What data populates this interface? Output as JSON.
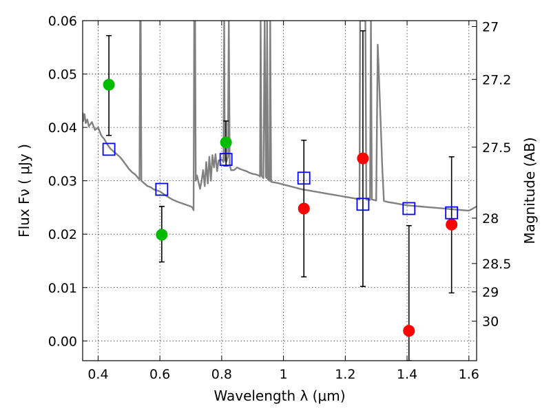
{
  "chart_data": {
    "type": "scatter",
    "title": "",
    "xlabel": "Wavelength  λ (μm)",
    "ylabel": "Flux  Fν  ( μJy )",
    "right_ylabel": "Magnitude (AB)",
    "xlim": [
      0.35,
      1.625
    ],
    "ylim": [
      -0.0037,
      0.06
    ],
    "x_ticks": [
      0.4,
      0.6,
      0.8,
      1.0,
      1.2,
      1.4,
      1.6
    ],
    "x_tick_labels": [
      "0.4",
      "0.6",
      "0.8",
      "1",
      "1.2",
      "1.4",
      "1.6"
    ],
    "y_ticks": [
      0.0,
      0.01,
      0.02,
      0.03,
      0.04,
      0.05,
      0.06
    ],
    "y_tick_labels": [
      "0.00",
      "0.01",
      "0.02",
      "0.03",
      "0.04",
      "0.05",
      "0.06"
    ],
    "right_ticks": [
      {
        "label": "27",
        "flux": 0.0589
      },
      {
        "label": "27.2",
        "flux": 0.049
      },
      {
        "label": "27.5",
        "flux": 0.0363
      },
      {
        "label": "28",
        "flux": 0.023
      },
      {
        "label": "28.5",
        "flux": 0.0145
      },
      {
        "label": "29",
        "flux": 0.0092
      },
      {
        "label": "30",
        "flux": 0.0037
      }
    ],
    "grid": true,
    "colors": {
      "green": "#00bb00",
      "red": "#ff0000",
      "blue": "#0000ff",
      "model": "#808080",
      "errorbar": "#000000"
    },
    "series": [
      {
        "marker": "circle",
        "color": "green",
        "points": [
          {
            "x": 0.435,
            "y": 0.048,
            "lo": 0.0385,
            "hi": 0.0572
          },
          {
            "x": 0.606,
            "y": 0.0199,
            "lo": 0.0148,
            "hi": 0.0252
          },
          {
            "x": 0.814,
            "y": 0.0372,
            "lo": 0.0328,
            "hi": 0.0412
          }
        ]
      },
      {
        "marker": "circle",
        "color": "red",
        "points": [
          {
            "x": 1.066,
            "y": 0.0248,
            "lo": 0.012,
            "hi": 0.0376
          },
          {
            "x": 1.257,
            "y": 0.0342,
            "lo": 0.0102,
            "hi": 0.0581
          },
          {
            "x": 1.406,
            "y": 0.0019,
            "lo": -0.0037,
            "hi": 0.0216
          },
          {
            "x": 1.544,
            "y": 0.0218,
            "lo": 0.009,
            "hi": 0.0345
          }
        ]
      },
      {
        "marker": "open-square",
        "color": "blue",
        "points": [
          {
            "x": 0.435,
            "y": 0.0359
          },
          {
            "x": 0.606,
            "y": 0.0284
          },
          {
            "x": 0.814,
            "y": 0.034
          },
          {
            "x": 1.066,
            "y": 0.0305
          },
          {
            "x": 1.257,
            "y": 0.0256
          },
          {
            "x": 1.406,
            "y": 0.0248
          },
          {
            "x": 1.544,
            "y": 0.024
          }
        ]
      }
    ],
    "model_spectrum": {
      "color": "model",
      "points": [
        [
          0.35,
          0.0428
        ],
        [
          0.352,
          0.0412
        ],
        [
          0.356,
          0.0425
        ],
        [
          0.36,
          0.0408
        ],
        [
          0.365,
          0.0415
        ],
        [
          0.37,
          0.0402
        ],
        [
          0.38,
          0.041
        ],
        [
          0.39,
          0.0395
        ],
        [
          0.4,
          0.04
        ],
        [
          0.41,
          0.0385
        ],
        [
          0.42,
          0.0378
        ],
        [
          0.43,
          0.0368
        ],
        [
          0.44,
          0.036
        ],
        [
          0.45,
          0.0355
        ],
        [
          0.46,
          0.035
        ],
        [
          0.47,
          0.0345
        ],
        [
          0.48,
          0.0338
        ],
        [
          0.49,
          0.033
        ],
        [
          0.5,
          0.0322
        ],
        [
          0.51,
          0.0316
        ],
        [
          0.52,
          0.0312
        ],
        [
          0.53,
          0.0305
        ],
        [
          0.534,
          0.0302
        ],
        [
          0.536,
          0.06
        ],
        [
          0.538,
          0.06
        ],
        [
          0.54,
          0.03
        ],
        [
          0.55,
          0.0295
        ],
        [
          0.56,
          0.029
        ],
        [
          0.57,
          0.0288
        ],
        [
          0.58,
          0.0284
        ],
        [
          0.59,
          0.0282
        ],
        [
          0.6,
          0.028
        ],
        [
          0.62,
          0.0272
        ],
        [
          0.64,
          0.0265
        ],
        [
          0.66,
          0.026
        ],
        [
          0.68,
          0.0256
        ],
        [
          0.7,
          0.0252
        ],
        [
          0.705,
          0.025
        ],
        [
          0.709,
          0.0245
        ],
        [
          0.711,
          0.06
        ],
        [
          0.714,
          0.06
        ],
        [
          0.716,
          0.03
        ],
        [
          0.72,
          0.031
        ],
        [
          0.73,
          0.0285
        ],
        [
          0.735,
          0.03
        ],
        [
          0.74,
          0.032
        ],
        [
          0.745,
          0.029
        ],
        [
          0.75,
          0.0335
        ],
        [
          0.755,
          0.0295
        ],
        [
          0.76,
          0.0345
        ],
        [
          0.765,
          0.03
        ],
        [
          0.77,
          0.0348
        ],
        [
          0.775,
          0.0325
        ],
        [
          0.78,
          0.035
        ],
        [
          0.785,
          0.0318
        ],
        [
          0.79,
          0.0338
        ],
        [
          0.8,
          0.034
        ],
        [
          0.806,
          0.0335
        ],
        [
          0.808,
          0.06
        ],
        [
          0.81,
          0.034
        ],
        [
          0.815,
          0.0335
        ],
        [
          0.82,
          0.0345
        ],
        [
          0.823,
          0.06
        ],
        [
          0.826,
          0.033
        ],
        [
          0.83,
          0.032
        ],
        [
          0.84,
          0.032
        ],
        [
          0.85,
          0.0325
        ],
        [
          0.86,
          0.0322
        ],
        [
          0.87,
          0.032
        ],
        [
          0.88,
          0.0318
        ],
        [
          0.89,
          0.0315
        ],
        [
          0.9,
          0.0313
        ],
        [
          0.91,
          0.0312
        ],
        [
          0.92,
          0.031
        ],
        [
          0.924,
          0.0308
        ],
        [
          0.926,
          0.06
        ],
        [
          0.929,
          0.031
        ],
        [
          0.935,
          0.0305
        ],
        [
          0.939,
          0.06
        ],
        [
          0.943,
          0.0308
        ],
        [
          0.945,
          0.0305
        ],
        [
          0.947,
          0.06
        ],
        [
          0.95,
          0.0302
        ],
        [
          0.955,
          0.03
        ],
        [
          0.957,
          0.06
        ],
        [
          0.96,
          0.0298
        ],
        [
          0.98,
          0.0296
        ],
        [
          1.0,
          0.0293
        ],
        [
          1.02,
          0.029
        ],
        [
          1.04,
          0.0287
        ],
        [
          1.06,
          0.0284
        ],
        [
          1.08,
          0.0282
        ],
        [
          1.1,
          0.028
        ],
        [
          1.12,
          0.0278
        ],
        [
          1.14,
          0.0276
        ],
        [
          1.16,
          0.0274
        ],
        [
          1.18,
          0.0272
        ],
        [
          1.2,
          0.027
        ],
        [
          1.22,
          0.0268
        ],
        [
          1.24,
          0.0266
        ],
        [
          1.246,
          0.0265
        ],
        [
          1.248,
          0.06
        ],
        [
          1.265,
          0.06
        ],
        [
          1.268,
          0.0265
        ],
        [
          1.28,
          0.0264
        ],
        [
          1.283,
          0.06
        ],
        [
          1.286,
          0.0265
        ],
        [
          1.3,
          0.0263
        ],
        [
          1.305,
          0.0555
        ],
        [
          1.31,
          0.048
        ],
        [
          1.315,
          0.04
        ],
        [
          1.32,
          0.032
        ],
        [
          1.325,
          0.0262
        ],
        [
          1.34,
          0.026
        ],
        [
          1.36,
          0.0258
        ],
        [
          1.38,
          0.0256
        ],
        [
          1.4,
          0.0254
        ],
        [
          1.42,
          0.0253
        ],
        [
          1.44,
          0.0252
        ],
        [
          1.46,
          0.0251
        ],
        [
          1.48,
          0.025
        ],
        [
          1.5,
          0.0249
        ],
        [
          1.52,
          0.0248
        ],
        [
          1.54,
          0.0247
        ],
        [
          1.56,
          0.0246
        ],
        [
          1.58,
          0.0245
        ],
        [
          1.6,
          0.0244
        ],
        [
          1.61,
          0.0247
        ],
        [
          1.625,
          0.0252
        ]
      ]
    }
  }
}
